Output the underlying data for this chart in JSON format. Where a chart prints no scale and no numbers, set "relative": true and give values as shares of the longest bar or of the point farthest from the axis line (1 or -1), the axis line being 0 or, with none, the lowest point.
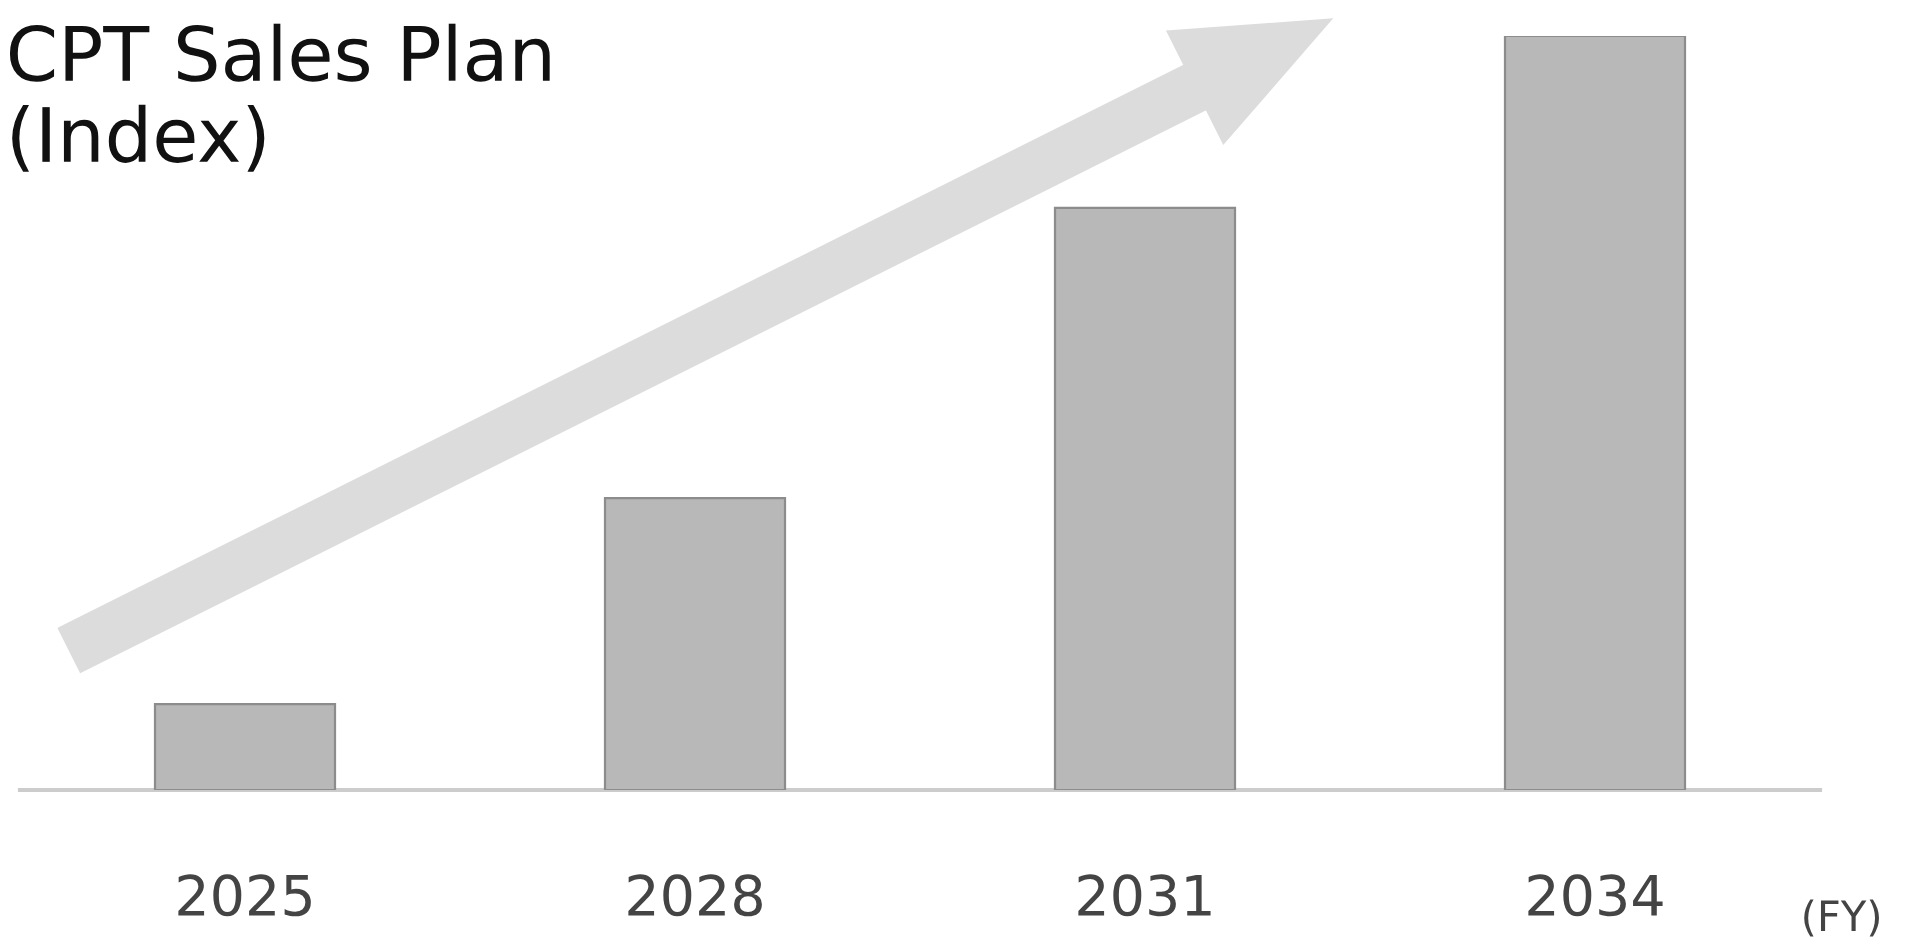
{
  "chart_data": {
    "type": "bar",
    "title": "CPT Sales Plan\n(Index)",
    "xlabel": "(FY)",
    "categories": [
      "2025",
      "2028",
      "2031",
      "2034"
    ],
    "values": [
      0.114,
      0.387,
      0.772,
      1
    ],
    "color": "#b8b8b8",
    "relative": true,
    "grid": false,
    "legend": false
  }
}
